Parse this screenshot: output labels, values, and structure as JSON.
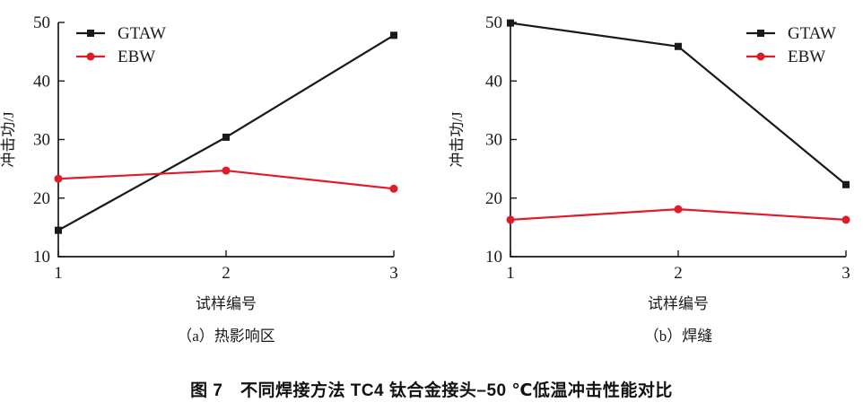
{
  "figure": {
    "caption": "图 7　不同焊接方法 TC4 钛合金接头–50 ℃低温冲击性能对比"
  },
  "colors": {
    "gtaw": "#1a1a1a",
    "ebw": "#df1b2c",
    "axis": "#1a1a1a"
  },
  "chart_data": [
    {
      "type": "line",
      "panel_label": "（a）热影响区",
      "x": [
        1,
        2,
        3
      ],
      "xlabel": "试样编号",
      "ylabel": "冲击功/J",
      "ylim": [
        10,
        50
      ],
      "yticks": [
        10,
        20,
        30,
        40,
        50
      ],
      "xticks": [
        1,
        2,
        3
      ],
      "grid": false,
      "legend_position": "top-left",
      "series": [
        {
          "name": "GTAW",
          "color": "#1a1a1a",
          "marker": "square",
          "values": [
            14.5,
            30.4,
            47.8
          ]
        },
        {
          "name": "EBW",
          "color": "#df1b2c",
          "marker": "circle",
          "values": [
            23.3,
            24.7,
            21.6
          ]
        }
      ]
    },
    {
      "type": "line",
      "panel_label": "（b）焊缝",
      "x": [
        1,
        2,
        3
      ],
      "xlabel": "试样编号",
      "ylabel": "冲击功/J",
      "ylim": [
        10,
        50
      ],
      "yticks": [
        10,
        20,
        30,
        40,
        50
      ],
      "xticks": [
        1,
        2,
        3
      ],
      "grid": false,
      "legend_position": "top-right",
      "series": [
        {
          "name": "GTAW",
          "color": "#1a1a1a",
          "marker": "square",
          "values": [
            49.9,
            45.9,
            22.3
          ]
        },
        {
          "name": "EBW",
          "color": "#df1b2c",
          "marker": "circle",
          "values": [
            16.3,
            18.1,
            16.3
          ]
        }
      ]
    }
  ]
}
